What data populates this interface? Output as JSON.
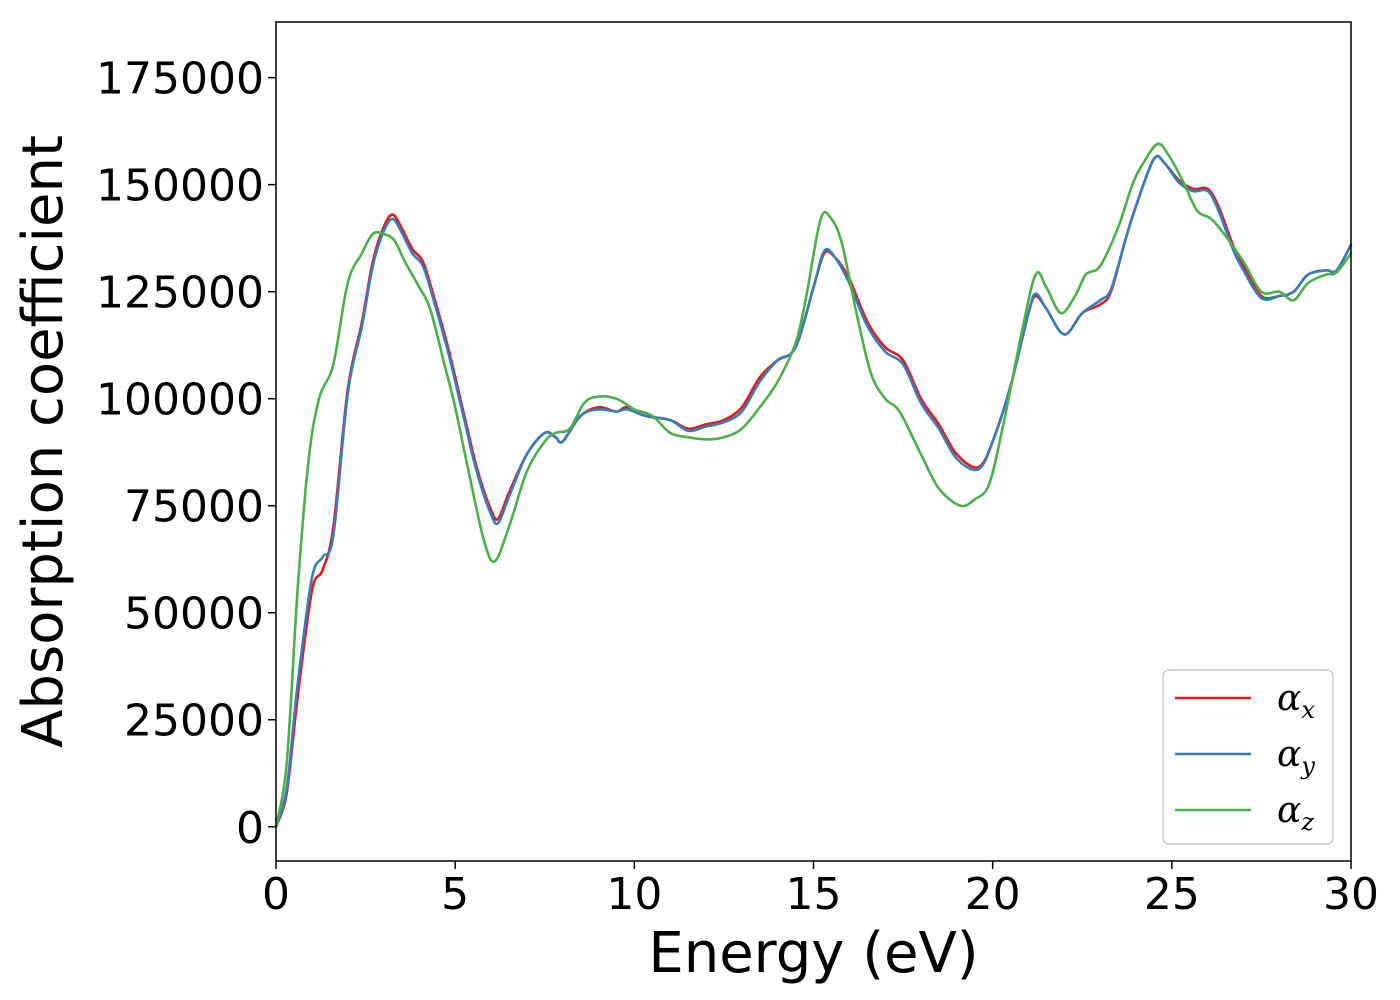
{
  "chart_data": {
    "type": "line",
    "title": "",
    "xlabel": "Energy (eV)",
    "ylabel": "Absorption coefficient",
    "xlim": [
      0,
      30
    ],
    "ylim": [
      -8000,
      188000
    ],
    "xticks": [
      0,
      5,
      10,
      15,
      20,
      25,
      30
    ],
    "yticks": [
      0,
      25000,
      50000,
      75000,
      100000,
      125000,
      150000,
      175000
    ],
    "grid": false,
    "legend_position": "bottom-right",
    "series": [
      {
        "name": "α_x",
        "label_main": "α",
        "label_sub": "x",
        "color": "#e41a1c",
        "points": [
          [
            0,
            0
          ],
          [
            0.3,
            8000
          ],
          [
            0.6,
            30000
          ],
          [
            1.0,
            55000
          ],
          [
            1.3,
            60000
          ],
          [
            1.6,
            70000
          ],
          [
            2.0,
            102000
          ],
          [
            2.4,
            118000
          ],
          [
            2.7,
            132000
          ],
          [
            3.0,
            140000
          ],
          [
            3.25,
            143000
          ],
          [
            3.5,
            140000
          ],
          [
            3.8,
            135000
          ],
          [
            4.1,
            132000
          ],
          [
            4.4,
            124000
          ],
          [
            4.8,
            112000
          ],
          [
            5.2,
            98000
          ],
          [
            5.6,
            84000
          ],
          [
            6.0,
            74000
          ],
          [
            6.2,
            72000
          ],
          [
            6.5,
            78000
          ],
          [
            7.0,
            87000
          ],
          [
            7.5,
            92000
          ],
          [
            7.8,
            91000
          ],
          [
            8.0,
            90000
          ],
          [
            8.5,
            96000
          ],
          [
            9.0,
            98000
          ],
          [
            9.5,
            97000
          ],
          [
            9.8,
            98000
          ],
          [
            10.3,
            96000
          ],
          [
            11.0,
            95000
          ],
          [
            11.5,
            93000
          ],
          [
            12.0,
            94000
          ],
          [
            12.5,
            95000
          ],
          [
            13.0,
            98000
          ],
          [
            13.5,
            105000
          ],
          [
            14.0,
            109000
          ],
          [
            14.5,
            112000
          ],
          [
            15.0,
            126000
          ],
          [
            15.3,
            134000
          ],
          [
            15.6,
            133000
          ],
          [
            16.0,
            128000
          ],
          [
            16.5,
            118000
          ],
          [
            17.0,
            112000
          ],
          [
            17.5,
            109000
          ],
          [
            18.0,
            100000
          ],
          [
            18.5,
            94000
          ],
          [
            19.0,
            87000
          ],
          [
            19.6,
            84000
          ],
          [
            20.0,
            90000
          ],
          [
            20.5,
            103000
          ],
          [
            21.0,
            120000
          ],
          [
            21.2,
            124000
          ],
          [
            21.5,
            121000
          ],
          [
            22.0,
            115000
          ],
          [
            22.5,
            120000
          ],
          [
            23.0,
            122000
          ],
          [
            23.3,
            125000
          ],
          [
            23.7,
            137000
          ],
          [
            24.0,
            145000
          ],
          [
            24.5,
            156000
          ],
          [
            24.8,
            155000
          ],
          [
            25.2,
            151000
          ],
          [
            25.6,
            149000
          ],
          [
            26.0,
            149000
          ],
          [
            26.3,
            145000
          ],
          [
            26.7,
            136000
          ],
          [
            27.0,
            131000
          ],
          [
            27.5,
            124000
          ],
          [
            28.0,
            124000
          ],
          [
            28.4,
            125000
          ],
          [
            28.8,
            129000
          ],
          [
            29.3,
            130000
          ],
          [
            29.6,
            130000
          ],
          [
            30,
            136000
          ]
        ]
      },
      {
        "name": "α_y",
        "label_main": "α",
        "label_sub": "y",
        "color": "#377eb8",
        "points": [
          [
            0,
            0
          ],
          [
            0.3,
            9000
          ],
          [
            0.6,
            33000
          ],
          [
            1.0,
            58000
          ],
          [
            1.3,
            63000
          ],
          [
            1.6,
            68000
          ],
          [
            2.0,
            101000
          ],
          [
            2.4,
            117000
          ],
          [
            2.7,
            131000
          ],
          [
            3.0,
            139000
          ],
          [
            3.25,
            142000
          ],
          [
            3.5,
            139000
          ],
          [
            3.8,
            134000
          ],
          [
            4.1,
            131000
          ],
          [
            4.4,
            123000
          ],
          [
            4.8,
            111000
          ],
          [
            5.2,
            97000
          ],
          [
            5.6,
            83000
          ],
          [
            6.0,
            73000
          ],
          [
            6.2,
            71000
          ],
          [
            6.5,
            77000
          ],
          [
            7.0,
            87000
          ],
          [
            7.5,
            92000
          ],
          [
            7.8,
            91000
          ],
          [
            8.0,
            90000
          ],
          [
            8.5,
            96000
          ],
          [
            9.0,
            97500
          ],
          [
            9.5,
            97000
          ],
          [
            9.8,
            97500
          ],
          [
            10.3,
            96000
          ],
          [
            11.0,
            95000
          ],
          [
            11.5,
            92500
          ],
          [
            12.0,
            93500
          ],
          [
            12.5,
            94500
          ],
          [
            13.0,
            97000
          ],
          [
            13.5,
            104000
          ],
          [
            14.0,
            109000
          ],
          [
            14.5,
            112000
          ],
          [
            15.0,
            126000
          ],
          [
            15.3,
            134500
          ],
          [
            15.6,
            133000
          ],
          [
            16.0,
            127000
          ],
          [
            16.5,
            117000
          ],
          [
            17.0,
            111000
          ],
          [
            17.5,
            108000
          ],
          [
            18.0,
            99000
          ],
          [
            18.5,
            93000
          ],
          [
            19.0,
            86000
          ],
          [
            19.6,
            83500
          ],
          [
            20.0,
            90000
          ],
          [
            20.5,
            103000
          ],
          [
            21.0,
            120000
          ],
          [
            21.2,
            124500
          ],
          [
            21.5,
            121000
          ],
          [
            22.0,
            115000
          ],
          [
            22.5,
            120000
          ],
          [
            23.0,
            123000
          ],
          [
            23.3,
            125500
          ],
          [
            23.7,
            137000
          ],
          [
            24.0,
            145000
          ],
          [
            24.5,
            156000
          ],
          [
            24.8,
            155000
          ],
          [
            25.2,
            150500
          ],
          [
            25.6,
            148500
          ],
          [
            26.0,
            148500
          ],
          [
            26.3,
            144000
          ],
          [
            26.7,
            135000
          ],
          [
            27.0,
            130000
          ],
          [
            27.5,
            123500
          ],
          [
            28.0,
            124000
          ],
          [
            28.4,
            125000
          ],
          [
            28.8,
            129000
          ],
          [
            29.3,
            130000
          ],
          [
            29.6,
            130000
          ],
          [
            30,
            136000
          ]
        ]
      },
      {
        "name": "α_z",
        "label_main": "α",
        "label_sub": "z",
        "color": "#4daf4a",
        "points": [
          [
            0,
            0
          ],
          [
            0.3,
            15000
          ],
          [
            0.6,
            55000
          ],
          [
            0.9,
            85000
          ],
          [
            1.2,
            100000
          ],
          [
            1.6,
            108000
          ],
          [
            2.0,
            127000
          ],
          [
            2.4,
            134000
          ],
          [
            2.7,
            138500
          ],
          [
            3.0,
            138500
          ],
          [
            3.3,
            137000
          ],
          [
            3.6,
            132000
          ],
          [
            4.0,
            126000
          ],
          [
            4.3,
            121000
          ],
          [
            4.7,
            108000
          ],
          [
            5.0,
            98000
          ],
          [
            5.4,
            82000
          ],
          [
            5.8,
            67000
          ],
          [
            6.1,
            62000
          ],
          [
            6.5,
            70000
          ],
          [
            7.0,
            83000
          ],
          [
            7.5,
            90000
          ],
          [
            7.8,
            92000
          ],
          [
            8.2,
            93000
          ],
          [
            8.6,
            99000
          ],
          [
            9.0,
            100500
          ],
          [
            9.5,
            100000
          ],
          [
            10.0,
            97500
          ],
          [
            10.5,
            96000
          ],
          [
            11.0,
            92000
          ],
          [
            11.5,
            91000
          ],
          [
            12.0,
            90500
          ],
          [
            12.5,
            91000
          ],
          [
            13.0,
            93000
          ],
          [
            13.5,
            98000
          ],
          [
            14.0,
            104000
          ],
          [
            14.5,
            113000
          ],
          [
            14.8,
            124000
          ],
          [
            15.2,
            142000
          ],
          [
            15.5,
            142000
          ],
          [
            15.8,
            136000
          ],
          [
            16.2,
            120000
          ],
          [
            16.6,
            106000
          ],
          [
            17.0,
            100000
          ],
          [
            17.4,
            97000
          ],
          [
            18.0,
            87000
          ],
          [
            18.5,
            79000
          ],
          [
            19.1,
            75000
          ],
          [
            19.5,
            76500
          ],
          [
            19.9,
            80000
          ],
          [
            20.3,
            94000
          ],
          [
            20.8,
            115000
          ],
          [
            21.2,
            129000
          ],
          [
            21.5,
            126000
          ],
          [
            21.9,
            120000
          ],
          [
            22.3,
            124000
          ],
          [
            22.6,
            129000
          ],
          [
            23.0,
            131000
          ],
          [
            23.5,
            140000
          ],
          [
            23.9,
            150000
          ],
          [
            24.2,
            155000
          ],
          [
            24.6,
            159500
          ],
          [
            24.9,
            157000
          ],
          [
            25.3,
            151000
          ],
          [
            25.7,
            144000
          ],
          [
            26.1,
            142000
          ],
          [
            26.5,
            138000
          ],
          [
            27.0,
            132000
          ],
          [
            27.5,
            125000
          ],
          [
            28.0,
            125000
          ],
          [
            28.4,
            123000
          ],
          [
            28.8,
            127000
          ],
          [
            29.3,
            129000
          ],
          [
            29.6,
            129500
          ],
          [
            30,
            134000
          ]
        ]
      }
    ]
  }
}
